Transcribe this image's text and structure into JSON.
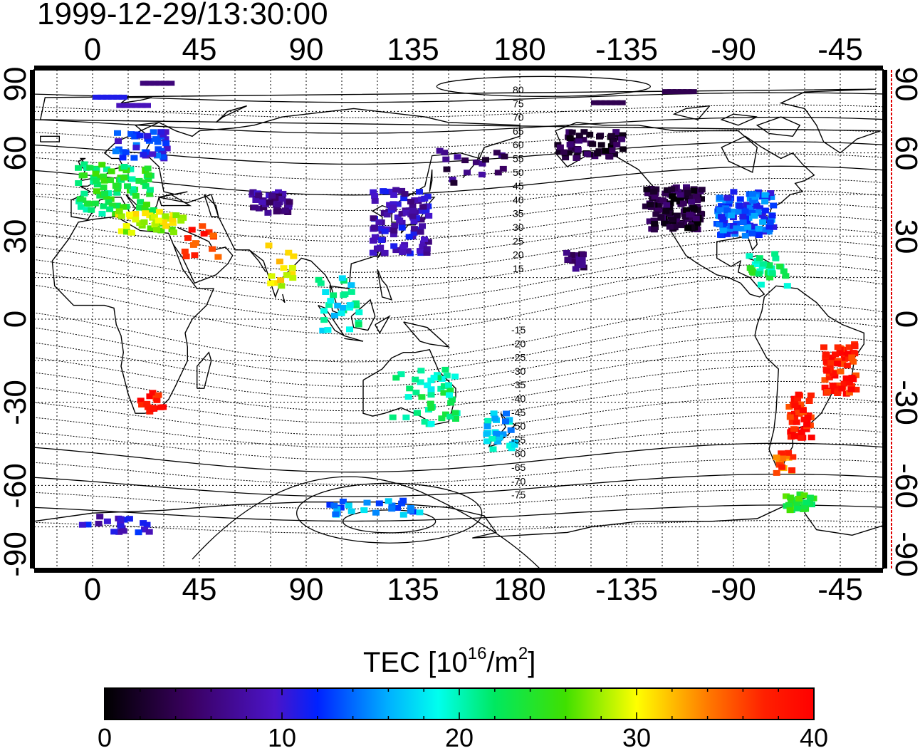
{
  "title": "1999-12-29/13:30:00",
  "map": {
    "x_ticks": [
      "0",
      "45",
      "90",
      "135",
      "180",
      "-135",
      "-90",
      "-45"
    ],
    "y_ticks": [
      "90",
      "60",
      "30",
      "0",
      "-30",
      "-60",
      "-90"
    ],
    "contour_labels_north": [
      "80",
      "75",
      "70",
      "65",
      "60",
      "55",
      "50",
      "45",
      "40",
      "35",
      "30",
      "25",
      "20",
      "15"
    ],
    "contour_labels_south": [
      "-15",
      "-20",
      "-25",
      "-30",
      "-35",
      "-40",
      "-45",
      "-50",
      "-55",
      "-60",
      "-65",
      "-70",
      "-75"
    ],
    "grid": "dotted every 15 degrees"
  },
  "colorbar": {
    "title_prefix": "TEC  [10",
    "title_exp1": "16",
    "title_mid": "/m",
    "title_exp2": "2",
    "title_suffix": "]",
    "min": 0,
    "max": 40,
    "ticks": [
      "0",
      "10",
      "20",
      "30",
      "40"
    ],
    "colormap": "rainbow: black-purple-blue-cyan-green-yellow-red"
  },
  "tec_clusters": [
    {
      "region": "europe",
      "lon": 10,
      "lat": 47,
      "value": 23
    },
    {
      "region": "scandinavia",
      "lon": 20,
      "lat": 63,
      "value": 12
    },
    {
      "region": "mediterranean",
      "lon": 25,
      "lat": 35,
      "value": 29
    },
    {
      "region": "middle-east",
      "lon": 45,
      "lat": 28,
      "value": 37
    },
    {
      "region": "central-asia",
      "lon": 75,
      "lat": 42,
      "value": 7
    },
    {
      "region": "india",
      "lon": 80,
      "lat": 20,
      "value": 30
    },
    {
      "region": "east-asia",
      "lon": 130,
      "lat": 35,
      "value": 9
    },
    {
      "region": "southeast-asia",
      "lon": 105,
      "lat": 5,
      "value": 19
    },
    {
      "region": "australia",
      "lon": 140,
      "lat": -28,
      "value": 21
    },
    {
      "region": "new-zealand",
      "lon": 172,
      "lat": -40,
      "value": 17
    },
    {
      "region": "siberia-pacific",
      "lon": 160,
      "lat": 55,
      "value": 5
    },
    {
      "region": "alaska",
      "lon": -150,
      "lat": 63,
      "value": 3
    },
    {
      "region": "north-america-west",
      "lon": -115,
      "lat": 40,
      "value": 3
    },
    {
      "region": "north-america-east",
      "lon": -85,
      "lat": 38,
      "value": 13
    },
    {
      "region": "hawaii",
      "lon": -157,
      "lat": 21,
      "value": 5
    },
    {
      "region": "caribbean",
      "lon": -75,
      "lat": 18,
      "value": 22
    },
    {
      "region": "south-america-east",
      "lon": -45,
      "lat": -18,
      "value": 38
    },
    {
      "region": "argentina",
      "lon": -62,
      "lat": -35,
      "value": 38
    },
    {
      "region": "patagonia",
      "lon": -68,
      "lat": -52,
      "value": 35
    },
    {
      "region": "antarctic-peninsula",
      "lon": -62,
      "lat": -66,
      "value": 24
    },
    {
      "region": "south-africa",
      "lon": 25,
      "lat": -30,
      "value": 38
    },
    {
      "region": "antarctica-east",
      "lon": 120,
      "lat": -68,
      "value": 15
    },
    {
      "region": "antarctica-west",
      "lon": 10,
      "lat": -74,
      "value": 10
    }
  ]
}
